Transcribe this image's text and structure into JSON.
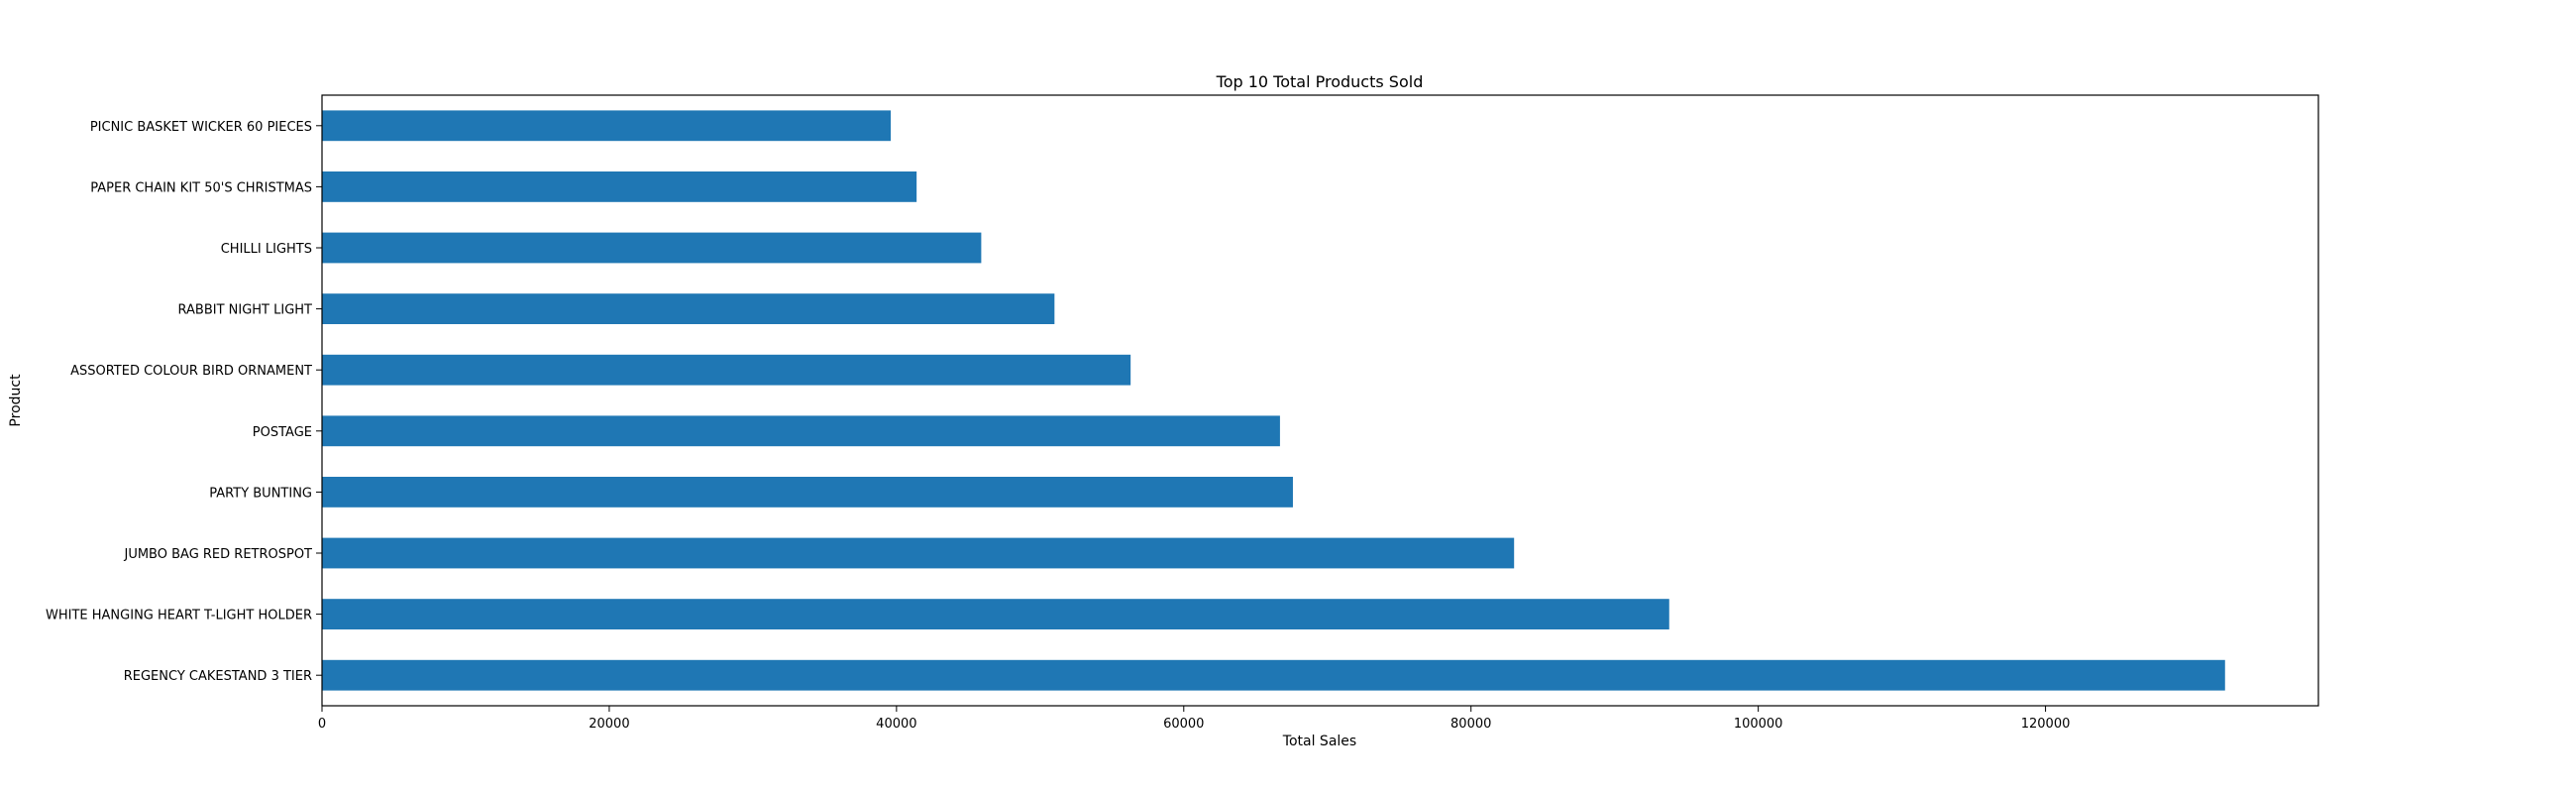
{
  "chart_data": {
    "type": "bar",
    "orientation": "horizontal",
    "title": "Top 10 Total Products Sold",
    "xlabel": "Total Sales",
    "ylabel": "Product",
    "categories": [
      "REGENCY CAKESTAND 3 TIER",
      "WHITE HANGING HEART T-LIGHT HOLDER",
      "JUMBO BAG RED RETROSPOT",
      "PARTY BUNTING",
      "POSTAGE",
      "ASSORTED COLOUR BIRD ORNAMENT",
      "RABBIT NIGHT LIGHT",
      "CHILLI LIGHTS",
      "PAPER CHAIN KIT 50'S CHRISTMAS ",
      "PICNIC BASKET WICKER 60 PIECES"
    ],
    "values": [
      132500,
      93800,
      83000,
      67600,
      66700,
      56300,
      51000,
      45900,
      41400,
      39600
    ],
    "xlim": [
      0,
      139000
    ],
    "xticks": [
      0,
      20000,
      40000,
      60000,
      80000,
      100000,
      120000
    ],
    "xtick_labels": [
      "0",
      "20000",
      "40000",
      "60000",
      "80000",
      "100000",
      "120000"
    ],
    "bar_color": "#1f77b4",
    "grid": false,
    "legend": false
  }
}
